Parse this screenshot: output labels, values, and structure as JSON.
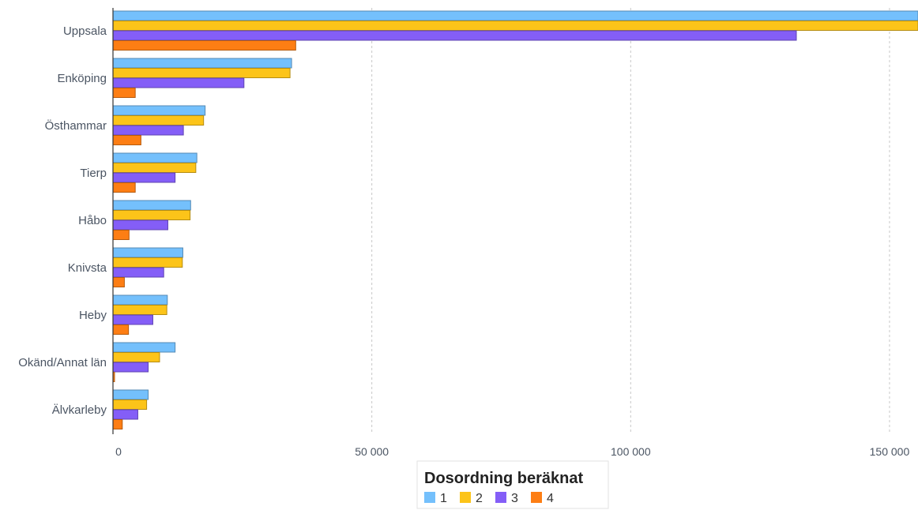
{
  "chart_data": {
    "type": "bar",
    "orientation": "horizontal",
    "categories": [
      "Uppsala",
      "Enköping",
      "Östhammar",
      "Tierp",
      "Håbo",
      "Knivsta",
      "Heby",
      "Okänd/Annat län",
      "Älvkarleby"
    ],
    "series": [
      {
        "name": "1",
        "color": "#74c0fc",
        "values": [
          160000,
          34500,
          17800,
          16200,
          15000,
          13500,
          10500,
          12000,
          6800
        ]
      },
      {
        "name": "2",
        "color": "#fcc419",
        "values": [
          160000,
          34200,
          17500,
          16000,
          14900,
          13400,
          10400,
          9000,
          6500
        ]
      },
      {
        "name": "3",
        "color": "#845ef7",
        "values": [
          132000,
          25300,
          13600,
          12000,
          10600,
          9800,
          7700,
          6800,
          4800
        ]
      },
      {
        "name": "4",
        "color": "#fd7e14",
        "values": [
          35300,
          4300,
          5400,
          4300,
          3100,
          2200,
          3000,
          300,
          1800
        ]
      }
    ],
    "xticks": [
      0,
      50000,
      100000,
      150000
    ],
    "xtick_labels": [
      "0",
      "50 000",
      "100 000",
      "150 000"
    ],
    "xlim": [
      0,
      155500
    ],
    "grid": "vertical-dashed",
    "legend": {
      "title": "Dosordning beräknat",
      "placement": "bottom-center"
    }
  }
}
